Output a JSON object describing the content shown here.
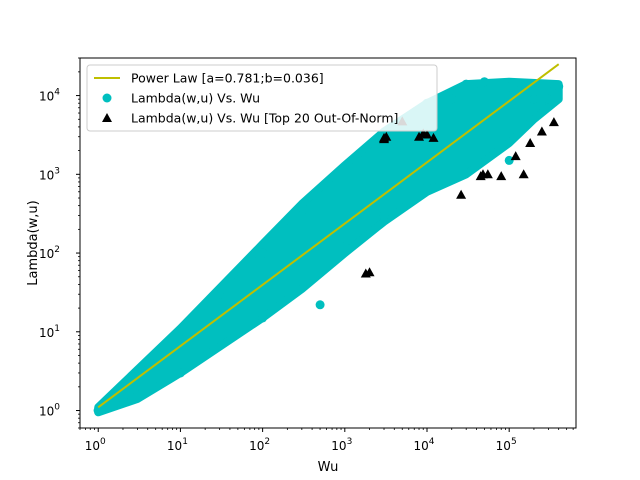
{
  "chart_data": {
    "type": "scatter",
    "xlabel": "Wu",
    "ylabel": "Lambda(w,u)",
    "xscale": "log",
    "yscale": "log",
    "xlim": [
      0.6,
      650000
    ],
    "ylim": [
      0.6,
      30000
    ],
    "grid": false,
    "legend_position": "top-left",
    "x_ticks": [
      {
        "value": 1,
        "base": "10",
        "exp": "0"
      },
      {
        "value": 10,
        "base": "10",
        "exp": "1"
      },
      {
        "value": 100,
        "base": "10",
        "exp": "2"
      },
      {
        "value": 1000,
        "base": "10",
        "exp": "3"
      },
      {
        "value": 10000,
        "base": "10",
        "exp": "4"
      },
      {
        "value": 100000,
        "base": "10",
        "exp": "5"
      }
    ],
    "y_ticks": [
      {
        "value": 1,
        "base": "10",
        "exp": "0"
      },
      {
        "value": 10,
        "base": "10",
        "exp": "1"
      },
      {
        "value": 100,
        "base": "10",
        "exp": "2"
      },
      {
        "value": 1000,
        "base": "10",
        "exp": "3"
      },
      {
        "value": 10000,
        "base": "10",
        "exp": "4"
      }
    ],
    "series": [
      {
        "name": "Power Law [a=0.781;b=0.036]",
        "kind": "line",
        "color": "#bfbf00",
        "x": [
          1,
          400000
        ],
        "y": [
          1.1,
          25000
        ]
      },
      {
        "name": "Lambda(w,u) Vs. Wu",
        "kind": "scatter-cloud",
        "color": "#00bfbf",
        "marker": "circle",
        "x": [
          1,
          1,
          2,
          2,
          3,
          3,
          4,
          5,
          10,
          10,
          30,
          100,
          100,
          300,
          500,
          1000,
          1000,
          3000,
          3000,
          10000,
          10000,
          20000,
          30000,
          50000,
          100000,
          100000,
          200000,
          300000,
          400000
        ],
        "y": [
          1,
          1,
          2,
          1.4,
          3,
          1.6,
          4,
          2,
          10,
          3,
          30,
          100,
          15,
          300,
          22,
          1000,
          120,
          3000,
          300,
          8000,
          800,
          9000,
          14000,
          15000,
          13000,
          1500,
          9000,
          9000,
          13000
        ]
      },
      {
        "name": "Lambda(w,u) Vs. Wu [Top 20 Out-Of-Norm]",
        "kind": "scatter",
        "color": "#000000",
        "marker": "triangle",
        "x": [
          1800,
          2000,
          3000,
          3200,
          5000,
          8000,
          10000,
          12000,
          26000,
          45000,
          48000,
          55000,
          80000,
          120000,
          150000,
          180000,
          250000,
          350000,
          3000,
          9000
        ],
        "y": [
          55,
          57,
          2900,
          3000,
          4700,
          3000,
          3200,
          2900,
          550,
          950,
          1000,
          1000,
          950,
          1700,
          1000,
          2500,
          3500,
          4600,
          2800,
          3300
        ]
      }
    ]
  }
}
